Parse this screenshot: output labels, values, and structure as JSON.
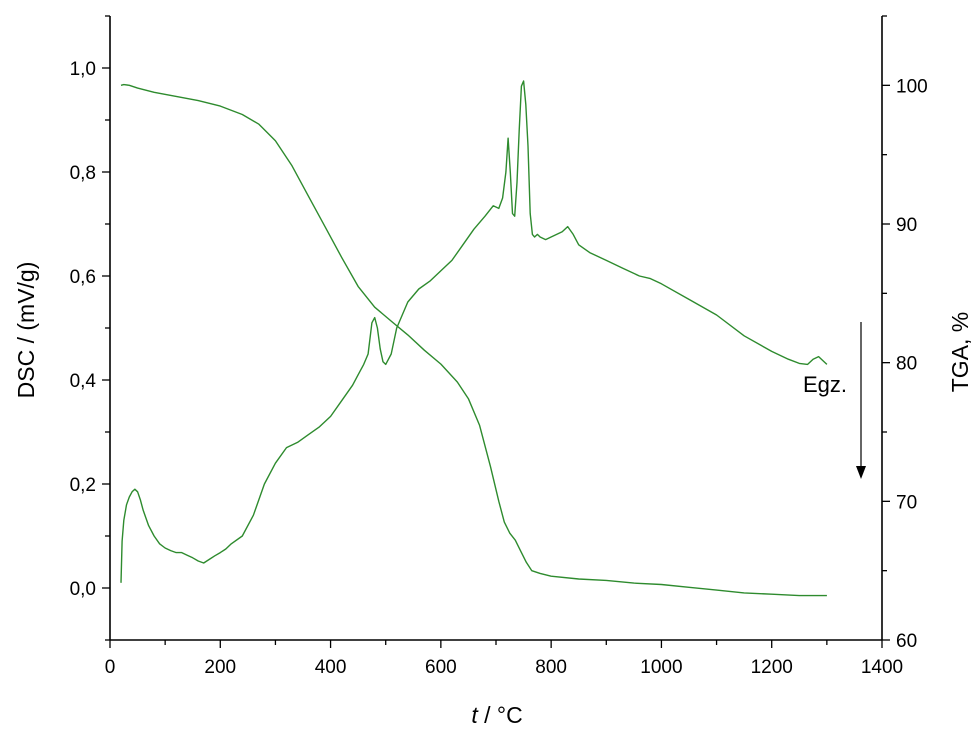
{
  "chart_data": {
    "type": "line",
    "xlabel_var": "t",
    "xlabel_unit": " / °C",
    "ylabel": "DSC / (mV/g)",
    "y2label": "TGA, %",
    "xlim": [
      0,
      1400
    ],
    "ylim": [
      -0.1,
      1.1
    ],
    "y2lim": [
      60,
      105
    ],
    "x_ticks": [
      "0",
      "200",
      "400",
      "600",
      "800",
      "1000",
      "1200",
      "1400"
    ],
    "y_ticks": [
      "0,0",
      "0,2",
      "0,4",
      "0,6",
      "0,8",
      "1,0"
    ],
    "y2_ticks": [
      "60",
      "70",
      "80",
      "90",
      "100"
    ],
    "annotation": "Egz.",
    "grid": false,
    "line_color": "#2e8b2e",
    "series": [
      {
        "axis": "left",
        "x": [
          20,
          22,
          25,
          30,
          35,
          40,
          45,
          50,
          55,
          60,
          70,
          80,
          90,
          100,
          110,
          120,
          130,
          140,
          150,
          160,
          170,
          180,
          190,
          200,
          210,
          220,
          240,
          260,
          280,
          300,
          320,
          340,
          360,
          380,
          400,
          420,
          440,
          450,
          460,
          468,
          475,
          480,
          485,
          490,
          495,
          500,
          510,
          520,
          540,
          560,
          580,
          600,
          620,
          640,
          660,
          680,
          695,
          705,
          712,
          718,
          722,
          726,
          730,
          734,
          738,
          742,
          746,
          750,
          754,
          758,
          762,
          766,
          770,
          775,
          780,
          790,
          800,
          820,
          830,
          840,
          850,
          870,
          900,
          930,
          960,
          980,
          1000,
          1050,
          1100,
          1150,
          1200,
          1230,
          1250,
          1265,
          1275,
          1285,
          1300
        ],
        "y": [
          0.01,
          0.09,
          0.13,
          0.16,
          0.175,
          0.185,
          0.19,
          0.185,
          0.17,
          0.15,
          0.12,
          0.1,
          0.085,
          0.077,
          0.072,
          0.068,
          0.068,
          0.063,
          0.058,
          0.052,
          0.048,
          0.055,
          0.062,
          0.068,
          0.075,
          0.085,
          0.1,
          0.14,
          0.2,
          0.24,
          0.27,
          0.28,
          0.295,
          0.31,
          0.33,
          0.36,
          0.39,
          0.41,
          0.43,
          0.45,
          0.51,
          0.52,
          0.5,
          0.46,
          0.435,
          0.43,
          0.45,
          0.5,
          0.55,
          0.575,
          0.59,
          0.61,
          0.63,
          0.66,
          0.69,
          0.715,
          0.735,
          0.73,
          0.75,
          0.8,
          0.865,
          0.8,
          0.72,
          0.715,
          0.78,
          0.88,
          0.965,
          0.975,
          0.93,
          0.85,
          0.72,
          0.68,
          0.675,
          0.68,
          0.675,
          0.67,
          0.675,
          0.685,
          0.695,
          0.68,
          0.66,
          0.645,
          0.63,
          0.615,
          0.6,
          0.595,
          0.585,
          0.555,
          0.525,
          0.485,
          0.455,
          0.44,
          0.432,
          0.43,
          0.44,
          0.445,
          0.43
        ]
      },
      {
        "axis": "right",
        "x": [
          20,
          25,
          35,
          50,
          80,
          120,
          160,
          200,
          240,
          270,
          300,
          330,
          360,
          390,
          420,
          450,
          480,
          510,
          540,
          570,
          600,
          630,
          650,
          670,
          690,
          705,
          715,
          725,
          735,
          745,
          755,
          765,
          780,
          800,
          850,
          900,
          950,
          1000,
          1050,
          1100,
          1150,
          1200,
          1250,
          1300
        ],
        "y": [
          100.0,
          100.05,
          100.0,
          99.8,
          99.5,
          99.2,
          98.9,
          98.5,
          97.9,
          97.2,
          96.0,
          94.2,
          92.0,
          89.8,
          87.6,
          85.5,
          84.0,
          83.0,
          82.0,
          80.9,
          79.9,
          78.6,
          77.4,
          75.5,
          72.5,
          70.0,
          68.5,
          67.7,
          67.2,
          66.4,
          65.6,
          65.0,
          64.8,
          64.6,
          64.4,
          64.3,
          64.1,
          64.0,
          63.8,
          63.6,
          63.4,
          63.3,
          63.2,
          63.2
        ]
      }
    ]
  }
}
